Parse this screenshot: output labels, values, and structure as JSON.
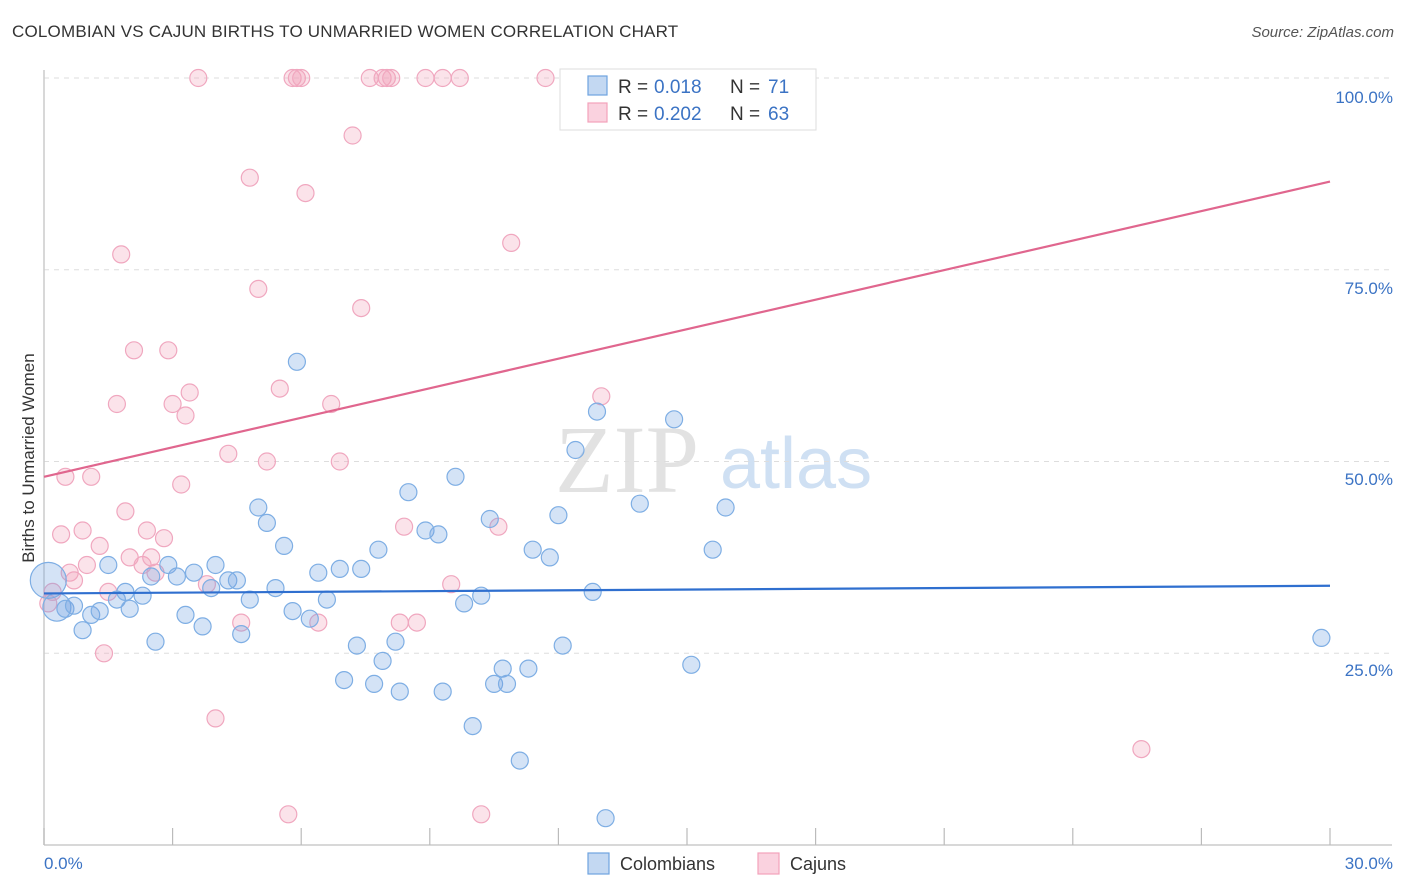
{
  "header": {
    "title": "COLOMBIAN VS CAJUN BIRTHS TO UNMARRIED WOMEN CORRELATION CHART",
    "source": "Source: ZipAtlas.com"
  },
  "watermark": {
    "part1": "ZIP",
    "part2": "atlas"
  },
  "colors": {
    "blue": "#6fa3e0",
    "blue_line": "#2f6fcf",
    "pink": "#f2a2bb",
    "pink_line": "#e0668e"
  },
  "legend": {
    "items": [
      {
        "r_label": "R =",
        "r_value": "0.018",
        "n_label": "N =",
        "n_value": "71"
      },
      {
        "r_label": "R =",
        "r_value": "0.202",
        "n_label": "N =",
        "n_value": "63"
      }
    ]
  },
  "bottom_legend": {
    "items": [
      "Colombians",
      "Cajuns"
    ]
  },
  "chart_data": {
    "type": "scatter",
    "title": "COLOMBIAN VS CAJUN BIRTHS TO UNMARRIED WOMEN CORRELATION CHART",
    "xlabel": "",
    "ylabel": "Births to Unmarried Women",
    "xlim": [
      0,
      30
    ],
    "ylim": [
      0,
      100
    ],
    "x_tick_labels": [
      "0.0%",
      "30.0%"
    ],
    "y_tick_labels": [
      "25.0%",
      "50.0%",
      "75.0%",
      "100.0%"
    ],
    "y_ticks": [
      25,
      50,
      75,
      100
    ],
    "series": [
      {
        "name": "Colombians",
        "r": 0.018,
        "n": 71,
        "trend": [
          [
            0,
            32.8
          ],
          [
            30,
            33.8
          ]
        ],
        "points": [
          [
            0.1,
            34.5
          ],
          [
            0.3,
            31.0
          ],
          [
            0.5,
            30.8
          ],
          [
            0.7,
            31.2
          ],
          [
            0.9,
            28.0
          ],
          [
            1.1,
            30.0
          ],
          [
            1.3,
            30.5
          ],
          [
            1.5,
            36.5
          ],
          [
            1.7,
            32.0
          ],
          [
            1.9,
            33.0
          ],
          [
            2.0,
            30.8
          ],
          [
            2.3,
            32.5
          ],
          [
            2.5,
            35.0
          ],
          [
            2.6,
            26.5
          ],
          [
            2.9,
            36.5
          ],
          [
            3.1,
            35.0
          ],
          [
            3.3,
            30.0
          ],
          [
            3.5,
            35.5
          ],
          [
            3.7,
            28.5
          ],
          [
            3.9,
            33.5
          ],
          [
            4.0,
            36.5
          ],
          [
            4.3,
            34.5
          ],
          [
            4.5,
            34.5
          ],
          [
            4.6,
            27.5
          ],
          [
            4.8,
            32.0
          ],
          [
            5.0,
            44.0
          ],
          [
            5.2,
            42.0
          ],
          [
            5.4,
            33.5
          ],
          [
            5.6,
            39.0
          ],
          [
            5.8,
            30.5
          ],
          [
            5.9,
            63.0
          ],
          [
            6.2,
            29.5
          ],
          [
            6.4,
            35.5
          ],
          [
            6.6,
            32.0
          ],
          [
            6.9,
            36.0
          ],
          [
            7.0,
            21.5
          ],
          [
            7.3,
            26.0
          ],
          [
            7.4,
            36.0
          ],
          [
            7.7,
            21.0
          ],
          [
            7.8,
            38.5
          ],
          [
            7.9,
            24.0
          ],
          [
            8.2,
            26.5
          ],
          [
            8.3,
            20.0
          ],
          [
            8.5,
            46.0
          ],
          [
            8.9,
            41.0
          ],
          [
            9.2,
            40.5
          ],
          [
            9.3,
            20.0
          ],
          [
            9.6,
            48.0
          ],
          [
            9.8,
            31.5
          ],
          [
            10.0,
            15.5
          ],
          [
            10.2,
            32.5
          ],
          [
            10.4,
            42.5
          ],
          [
            10.5,
            21.0
          ],
          [
            10.7,
            23.0
          ],
          [
            10.8,
            21.0
          ],
          [
            11.1,
            11.0
          ],
          [
            11.3,
            23.0
          ],
          [
            11.4,
            38.5
          ],
          [
            11.8,
            37.5
          ],
          [
            12.0,
            43.0
          ],
          [
            12.1,
            26.0
          ],
          [
            12.4,
            51.5
          ],
          [
            12.8,
            33.0
          ],
          [
            12.9,
            56.5
          ],
          [
            13.1,
            3.5
          ],
          [
            13.9,
            44.5
          ],
          [
            14.7,
            55.5
          ],
          [
            15.1,
            23.5
          ],
          [
            15.6,
            38.5
          ],
          [
            15.9,
            44.0
          ],
          [
            29.8,
            27.0
          ]
        ]
      },
      {
        "name": "Cajuns",
        "r": 0.202,
        "n": 63,
        "trend": [
          [
            0,
            48.0
          ],
          [
            30,
            86.5
          ]
        ],
        "points": [
          [
            0.1,
            31.5
          ],
          [
            0.2,
            33.0
          ],
          [
            0.4,
            40.5
          ],
          [
            0.5,
            48.0
          ],
          [
            0.6,
            35.5
          ],
          [
            0.7,
            34.5
          ],
          [
            0.9,
            41.0
          ],
          [
            1.0,
            36.5
          ],
          [
            1.1,
            48.0
          ],
          [
            1.3,
            39.0
          ],
          [
            1.4,
            25.0
          ],
          [
            1.5,
            33.0
          ],
          [
            1.7,
            57.5
          ],
          [
            1.8,
            77.0
          ],
          [
            1.9,
            43.5
          ],
          [
            2.0,
            37.5
          ],
          [
            2.1,
            64.5
          ],
          [
            2.3,
            36.5
          ],
          [
            2.4,
            41.0
          ],
          [
            2.5,
            37.5
          ],
          [
            2.6,
            35.5
          ],
          [
            2.8,
            40.0
          ],
          [
            2.9,
            64.5
          ],
          [
            3.0,
            57.5
          ],
          [
            3.2,
            47.0
          ],
          [
            3.3,
            56.0
          ],
          [
            3.4,
            59.0
          ],
          [
            3.6,
            100.0
          ],
          [
            3.8,
            34.0
          ],
          [
            4.0,
            16.5
          ],
          [
            4.3,
            51.0
          ],
          [
            4.6,
            29.0
          ],
          [
            4.8,
            87.0
          ],
          [
            5.0,
            72.5
          ],
          [
            5.2,
            50.0
          ],
          [
            5.5,
            59.5
          ],
          [
            5.7,
            4.0
          ],
          [
            5.8,
            100.0
          ],
          [
            5.9,
            100.0
          ],
          [
            6.0,
            100.0
          ],
          [
            6.1,
            85.0
          ],
          [
            6.4,
            29.0
          ],
          [
            6.7,
            57.5
          ],
          [
            6.9,
            50.0
          ],
          [
            7.2,
            92.5
          ],
          [
            7.4,
            70.0
          ],
          [
            7.6,
            100.0
          ],
          [
            7.9,
            100.0
          ],
          [
            8.0,
            100.0
          ],
          [
            8.1,
            100.0
          ],
          [
            8.3,
            29.0
          ],
          [
            8.4,
            41.5
          ],
          [
            8.7,
            29.0
          ],
          [
            8.9,
            100.0
          ],
          [
            9.3,
            100.0
          ],
          [
            9.5,
            34.0
          ],
          [
            9.7,
            100.0
          ],
          [
            10.2,
            4.0
          ],
          [
            10.6,
            41.5
          ],
          [
            10.9,
            78.5
          ],
          [
            11.7,
            100.0
          ],
          [
            13.0,
            58.5
          ],
          [
            25.6,
            12.5
          ]
        ]
      }
    ]
  }
}
